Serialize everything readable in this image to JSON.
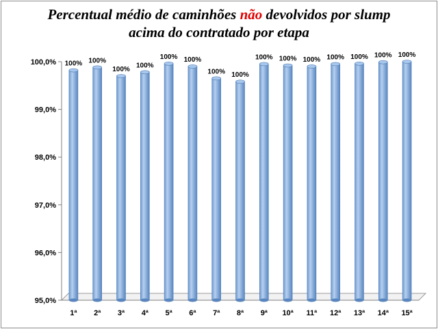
{
  "chart_data": {
    "type": "bar",
    "title_parts": [
      "Percentual médio de caminhões ",
      "não",
      " devolvidos por slump",
      "acima do contratado por etapa"
    ],
    "categories": [
      "1ª",
      "2ª",
      "3ª",
      "4ª",
      "5ª",
      "6ª",
      "7ª",
      "8ª",
      "9ª",
      "10ª",
      "11ª",
      "12ª",
      "13ª",
      "14ª",
      "15ª"
    ],
    "values": [
      99.82,
      99.88,
      99.7,
      99.78,
      99.96,
      99.9,
      99.65,
      99.58,
      99.95,
      99.92,
      99.9,
      99.95,
      99.96,
      99.99,
      100.0
    ],
    "data_labels": [
      "100%",
      "100%",
      "100%",
      "100%",
      "100%",
      "100%",
      "100%",
      "100%",
      "100%",
      "100%",
      "100%",
      "100%",
      "100%",
      "100%",
      "100%"
    ],
    "y_ticks": [
      "95,0%",
      "96,0%",
      "97,0%",
      "98,0%",
      "99,0%",
      "100,0%"
    ],
    "ylim": [
      95.0,
      100.0
    ],
    "xlabel": "",
    "ylabel": "",
    "grid": false,
    "legend": "none",
    "colors": {
      "bar": "#8fb4e0",
      "bar_dark": "#4f7fb8",
      "highlight_title": "#e00000"
    }
  }
}
